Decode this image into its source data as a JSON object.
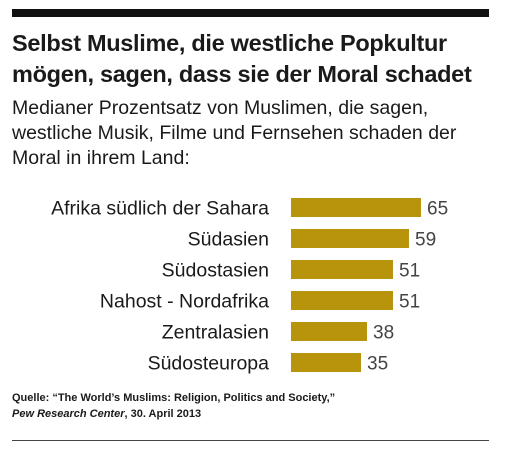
{
  "header": {
    "title": "Selbst Muslime, die westliche Popkultur mögen, sagen, dass sie der Moral schadet",
    "subtitle": "Medianer Prozentsatz von Muslimen, die sagen, westliche Musik, Filme und Fernsehen schaden der Moral in ihrem Land:"
  },
  "source": {
    "prefix": "Quelle: “The World’s Muslims: Religion, Politics and Society,”",
    "publisher": "Pew Research Center",
    "date": ", 30. April 2013"
  },
  "colors": {
    "bar": "#b8930c",
    "text": "#1a1a1a",
    "value": "#444444"
  },
  "chart_data": {
    "type": "bar",
    "orientation": "horizontal",
    "categories": [
      "Afrika südlich der Sahara",
      "Südasien",
      "Südostasien",
      "Nahost - Nordafrika",
      "Zentralasien",
      "Südosteuropa"
    ],
    "values": [
      65,
      59,
      51,
      51,
      38,
      35
    ],
    "xlim": [
      0,
      100
    ],
    "grid": false,
    "legend": "none"
  }
}
